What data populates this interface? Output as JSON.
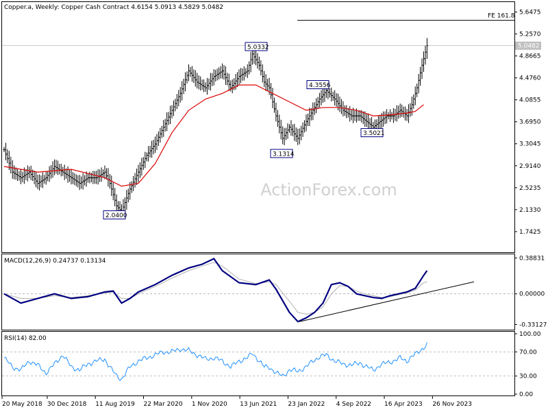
{
  "header": {
    "symbol_info": "Copper.a, Weekly:  Copper Cash Contract  4.6154 5.0913 4.5829 5.0482"
  },
  "watermark": "ActionForex.com",
  "colors": {
    "price_bar": "#000000",
    "moving_average": "#dd0000",
    "macd_line": "#000080",
    "signal_line": "#b0b0b0",
    "trend_line": "#000000",
    "fe_line": "#000000",
    "grid": "#aaaaaa"
  },
  "chart_data": [
    {
      "type": "ohlc",
      "name": "price",
      "ylim": [
        1.4,
        5.8
      ],
      "current_price": "5.0482",
      "yticks": [
        "5.6475",
        "5.2570",
        "4.8665",
        "4.4760",
        "4.0855",
        "3.6950",
        "3.3045",
        "2.9140",
        "2.5235",
        "2.1330",
        "1.7425"
      ],
      "fe_level": {
        "label": "FE 161.8",
        "value": 5.5
      },
      "annotations": [
        {
          "label": "5.0332",
          "value": 5.0332
        },
        {
          "label": "4.3556",
          "value": 4.3556
        },
        {
          "label": "3.5021",
          "value": 3.5021
        },
        {
          "label": "3.1314",
          "value": 3.1314
        },
        {
          "label": "2.0400",
          "value": 2.04
        }
      ],
      "anchors": [
        [
          0,
          3.2
        ],
        [
          5,
          2.8
        ],
        [
          10,
          2.7
        ],
        [
          15,
          2.8
        ],
        [
          20,
          2.6
        ],
        [
          25,
          2.7
        ],
        [
          30,
          2.9
        ],
        [
          35,
          2.8
        ],
        [
          40,
          2.7
        ],
        [
          45,
          2.6
        ],
        [
          50,
          2.7
        ],
        [
          55,
          2.7
        ],
        [
          60,
          2.8
        ],
        [
          63,
          2.6
        ],
        [
          67,
          2.2
        ],
        [
          70,
          2.1
        ],
        [
          75,
          2.5
        ],
        [
          80,
          2.8
        ],
        [
          85,
          3.1
        ],
        [
          90,
          3.3
        ],
        [
          95,
          3.6
        ],
        [
          100,
          3.9
        ],
        [
          105,
          4.2
        ],
        [
          110,
          4.6
        ],
        [
          115,
          4.4
        ],
        [
          120,
          4.3
        ],
        [
          125,
          4.5
        ],
        [
          130,
          4.6
        ],
        [
          135,
          4.3
        ],
        [
          140,
          4.5
        ],
        [
          145,
          4.6
        ],
        [
          148,
          4.9
        ],
        [
          152,
          4.7
        ],
        [
          155,
          4.4
        ],
        [
          158,
          4.3
        ],
        [
          162,
          3.8
        ],
        [
          166,
          3.4
        ],
        [
          170,
          3.6
        ],
        [
          175,
          3.4
        ],
        [
          180,
          3.7
        ],
        [
          184,
          3.9
        ],
        [
          188,
          4.1
        ],
        [
          192,
          4.25
        ],
        [
          197,
          4.1
        ],
        [
          202,
          3.9
        ],
        [
          207,
          3.8
        ],
        [
          212,
          3.8
        ],
        [
          216,
          3.7
        ],
        [
          220,
          3.6
        ],
        [
          224,
          3.7
        ],
        [
          228,
          3.8
        ],
        [
          232,
          3.8
        ],
        [
          236,
          3.9
        ],
        [
          240,
          3.8
        ],
        [
          243,
          4.0
        ],
        [
          246,
          4.3
        ],
        [
          249,
          4.7
        ],
        [
          252,
          5.05
        ]
      ],
      "moving_average": [
        [
          0,
          2.9
        ],
        [
          20,
          2.8
        ],
        [
          40,
          2.85
        ],
        [
          60,
          2.7
        ],
        [
          70,
          2.55
        ],
        [
          80,
          2.6
        ],
        [
          90,
          2.95
        ],
        [
          100,
          3.5
        ],
        [
          110,
          3.9
        ],
        [
          120,
          4.1
        ],
        [
          130,
          4.2
        ],
        [
          140,
          4.35
        ],
        [
          150,
          4.35
        ],
        [
          160,
          4.2
        ],
        [
          170,
          4.05
        ],
        [
          180,
          3.9
        ],
        [
          190,
          3.95
        ],
        [
          200,
          3.95
        ],
        [
          210,
          3.9
        ],
        [
          220,
          3.8
        ],
        [
          230,
          3.82
        ],
        [
          240,
          3.85
        ],
        [
          245,
          3.88
        ],
        [
          250,
          4.0
        ]
      ]
    },
    {
      "type": "line",
      "name": "macd",
      "title": "MACD(12,26,9) 0.24737 0.13134",
      "ylim": [
        -0.38,
        0.42
      ],
      "yticks": [
        {
          "label": "0.38831",
          "value": 0.38831
        },
        {
          "label": "0.00000",
          "value": 0
        },
        {
          "label": "-0.33127",
          "value": -0.33127
        }
      ],
      "series": [
        [
          0,
          0.0
        ],
        [
          10,
          -0.1
        ],
        [
          20,
          -0.05
        ],
        [
          30,
          0.0
        ],
        [
          40,
          -0.05
        ],
        [
          50,
          -0.03
        ],
        [
          60,
          0.02
        ],
        [
          65,
          0.03
        ],
        [
          70,
          -0.1
        ],
        [
          75,
          -0.05
        ],
        [
          80,
          0.02
        ],
        [
          90,
          0.1
        ],
        [
          100,
          0.2
        ],
        [
          110,
          0.28
        ],
        [
          118,
          0.32
        ],
        [
          125,
          0.38
        ],
        [
          130,
          0.25
        ],
        [
          140,
          0.12
        ],
        [
          150,
          0.1
        ],
        [
          158,
          0.15
        ],
        [
          162,
          0.05
        ],
        [
          170,
          -0.2
        ],
        [
          175,
          -0.3
        ],
        [
          180,
          -0.26
        ],
        [
          185,
          -0.2
        ],
        [
          190,
          -0.1
        ],
        [
          195,
          0.1
        ],
        [
          200,
          0.12
        ],
        [
          205,
          0.08
        ],
        [
          210,
          0.0
        ],
        [
          215,
          -0.02
        ],
        [
          220,
          -0.04
        ],
        [
          225,
          -0.05
        ],
        [
          230,
          -0.02
        ],
        [
          235,
          0.0
        ],
        [
          240,
          0.02
        ],
        [
          245,
          0.06
        ],
        [
          250,
          0.2
        ],
        [
          252,
          0.25
        ]
      ],
      "signal": [
        [
          0,
          0.0
        ],
        [
          10,
          -0.05
        ],
        [
          20,
          -0.05
        ],
        [
          30,
          -0.02
        ],
        [
          40,
          -0.04
        ],
        [
          50,
          -0.02
        ],
        [
          60,
          0.01
        ],
        [
          65,
          0.02
        ],
        [
          70,
          -0.05
        ],
        [
          75,
          -0.05
        ],
        [
          80,
          0.0
        ],
        [
          90,
          0.08
        ],
        [
          100,
          0.17
        ],
        [
          110,
          0.25
        ],
        [
          118,
          0.3
        ],
        [
          125,
          0.34
        ],
        [
          130,
          0.3
        ],
        [
          140,
          0.16
        ],
        [
          150,
          0.11
        ],
        [
          158,
          0.13
        ],
        [
          162,
          0.1
        ],
        [
          170,
          -0.08
        ],
        [
          175,
          -0.2
        ],
        [
          180,
          -0.22
        ],
        [
          185,
          -0.2
        ],
        [
          190,
          -0.14
        ],
        [
          195,
          0.0
        ],
        [
          200,
          0.09
        ],
        [
          205,
          0.08
        ],
        [
          210,
          0.03
        ],
        [
          215,
          0.0
        ],
        [
          220,
          -0.02
        ],
        [
          225,
          -0.04
        ],
        [
          230,
          -0.03
        ],
        [
          235,
          -0.01
        ],
        [
          240,
          0.01
        ],
        [
          245,
          0.04
        ],
        [
          250,
          0.12
        ],
        [
          252,
          0.13
        ]
      ],
      "trendline": {
        "from": [
          176,
          -0.3
        ],
        "to": [
          280,
          0.13
        ]
      }
    },
    {
      "type": "line",
      "name": "rsi",
      "title": "RSI(14) 82.00",
      "ylim": [
        0,
        100
      ],
      "levels": [
        70,
        30
      ],
      "yticks": [
        {
          "label": "100.00",
          "value": 100
        },
        {
          "label": "70.00",
          "value": 70
        },
        {
          "label": "30.00",
          "value": 30
        },
        {
          "label": "0.00",
          "value": 0
        }
      ],
      "series": [
        [
          0,
          60
        ],
        [
          5,
          45
        ],
        [
          10,
          40
        ],
        [
          15,
          55
        ],
        [
          20,
          48
        ],
        [
          25,
          35
        ],
        [
          30,
          50
        ],
        [
          35,
          65
        ],
        [
          40,
          45
        ],
        [
          45,
          40
        ],
        [
          50,
          50
        ],
        [
          55,
          55
        ],
        [
          60,
          58
        ],
        [
          63,
          45
        ],
        [
          67,
          30
        ],
        [
          70,
          25
        ],
        [
          75,
          45
        ],
        [
          80,
          55
        ],
        [
          85,
          60
        ],
        [
          90,
          65
        ],
        [
          95,
          70
        ],
        [
          100,
          70
        ],
        [
          105,
          75
        ],
        [
          110,
          72
        ],
        [
          115,
          65
        ],
        [
          120,
          58
        ],
        [
          125,
          60
        ],
        [
          130,
          55
        ],
        [
          135,
          45
        ],
        [
          140,
          55
        ],
        [
          145,
          60
        ],
        [
          148,
          68
        ],
        [
          152,
          55
        ],
        [
          155,
          45
        ],
        [
          158,
          45
        ],
        [
          162,
          35
        ],
        [
          166,
          30
        ],
        [
          170,
          40
        ],
        [
          175,
          38
        ],
        [
          180,
          45
        ],
        [
          184,
          55
        ],
        [
          188,
          62
        ],
        [
          192,
          65
        ],
        [
          197,
          55
        ],
        [
          202,
          50
        ],
        [
          207,
          48
        ],
        [
          212,
          52
        ],
        [
          216,
          45
        ],
        [
          220,
          40
        ],
        [
          224,
          48
        ],
        [
          228,
          52
        ],
        [
          232,
          55
        ],
        [
          236,
          60
        ],
        [
          240,
          55
        ],
        [
          243,
          62
        ],
        [
          246,
          68
        ],
        [
          249,
          75
        ],
        [
          252,
          82
        ]
      ]
    }
  ],
  "x_axis": {
    "labels": [
      {
        "label": "20 May 2018",
        "index": 0
      },
      {
        "label": "30 Dec 2018",
        "index": 30
      },
      {
        "label": "11 Aug 2019",
        "index": 62
      },
      {
        "label": "22 Mar 2020",
        "index": 94
      },
      {
        "label": "1 Nov 2020",
        "index": 126
      },
      {
        "label": "13 Jun 2021",
        "index": 158
      },
      {
        "label": "23 Jan 2022",
        "index": 190
      },
      {
        "label": "4 Sep 2022",
        "index": 222
      },
      {
        "label": "16 Apr 2023",
        "index": 254
      },
      {
        "label": "26 Nov 2023",
        "index": 286
      }
    ]
  }
}
